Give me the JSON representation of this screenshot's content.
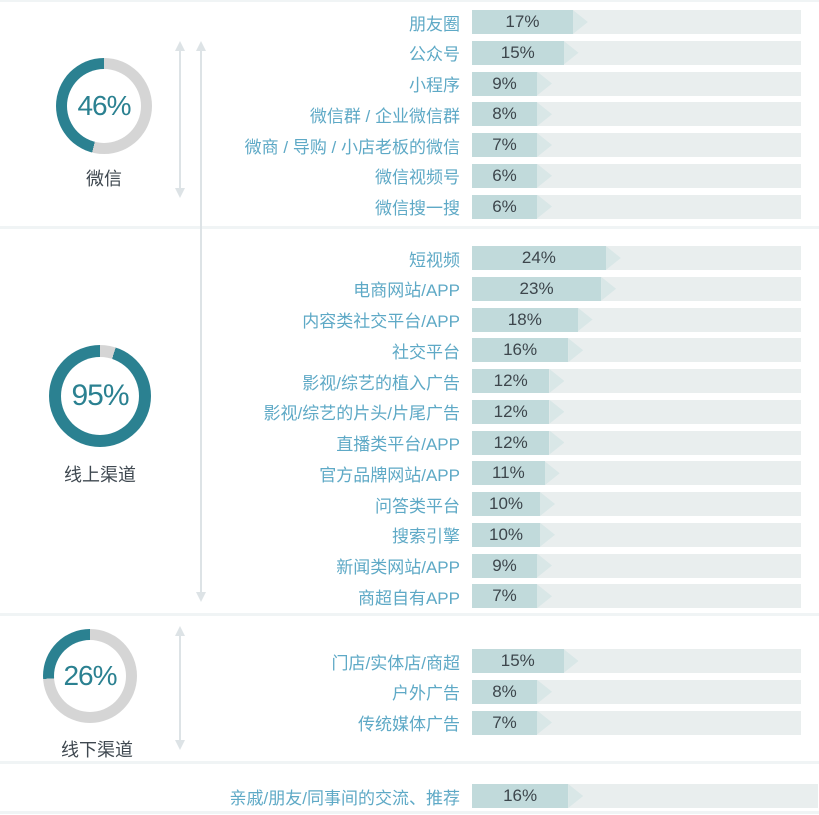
{
  "chart_data": {
    "type": "bar",
    "orientation": "horizontal",
    "unit": "%",
    "title": "",
    "legend": "none",
    "grid": false,
    "xlim": [
      0,
      100
    ],
    "sections": [
      {
        "group": "微信",
        "group_value": 46,
        "items": [
          {
            "label": "朋友圈",
            "value": 17
          },
          {
            "label": "公众号",
            "value": 15
          },
          {
            "label": "小程序",
            "value": 9
          },
          {
            "label": "微信群 / 企业微信群",
            "value": 8
          },
          {
            "label": "微商 / 导购 / 小店老板的微信",
            "value": 7
          },
          {
            "label": "微信视频号",
            "value": 6
          },
          {
            "label": "微信搜一搜",
            "value": 6
          }
        ]
      },
      {
        "group": "线上渠道",
        "group_value": 95,
        "items": [
          {
            "label": "短视频",
            "value": 24
          },
          {
            "label": "电商网站/APP",
            "value": 23
          },
          {
            "label": "内容类社交平台/APP",
            "value": 18
          },
          {
            "label": "社交平台",
            "value": 16
          },
          {
            "label": "影视/综艺的植入广告",
            "value": 12
          },
          {
            "label": "影视/综艺的片头/片尾广告",
            "value": 12
          },
          {
            "label": "直播类平台/APP",
            "value": 12
          },
          {
            "label": "官方品牌网站/APP",
            "value": 11
          },
          {
            "label": "问答类平台",
            "value": 10
          },
          {
            "label": "搜索引擎",
            "value": 10
          },
          {
            "label": "新闻类网站/APP",
            "value": 9
          },
          {
            "label": "商超自有APP",
            "value": 7
          }
        ]
      },
      {
        "group": "线下渠道",
        "group_value": 26,
        "items": [
          {
            "label": "门店/实体店/商超",
            "value": 15
          },
          {
            "label": "户外广告",
            "value": 8
          },
          {
            "label": "传统媒体广告",
            "value": 7
          }
        ]
      },
      {
        "group": null,
        "group_value": null,
        "items": [
          {
            "label": "亲戚/朋友/同事间的交流、推荐",
            "value": 16
          }
        ]
      }
    ],
    "colors": {
      "accent_teal": "#2b8191",
      "donut_track": "#d5d5d5",
      "bar_fill": "#c1dadb",
      "bar_tip": "#d9e7e7",
      "bar_track": "#e9eeee",
      "label_blue": "#5ea9c6",
      "value_text": "#3d464c",
      "caption_text": "#3f4850",
      "arrow_gray": "#dde3e6",
      "divider": "#f0f4f5"
    }
  }
}
